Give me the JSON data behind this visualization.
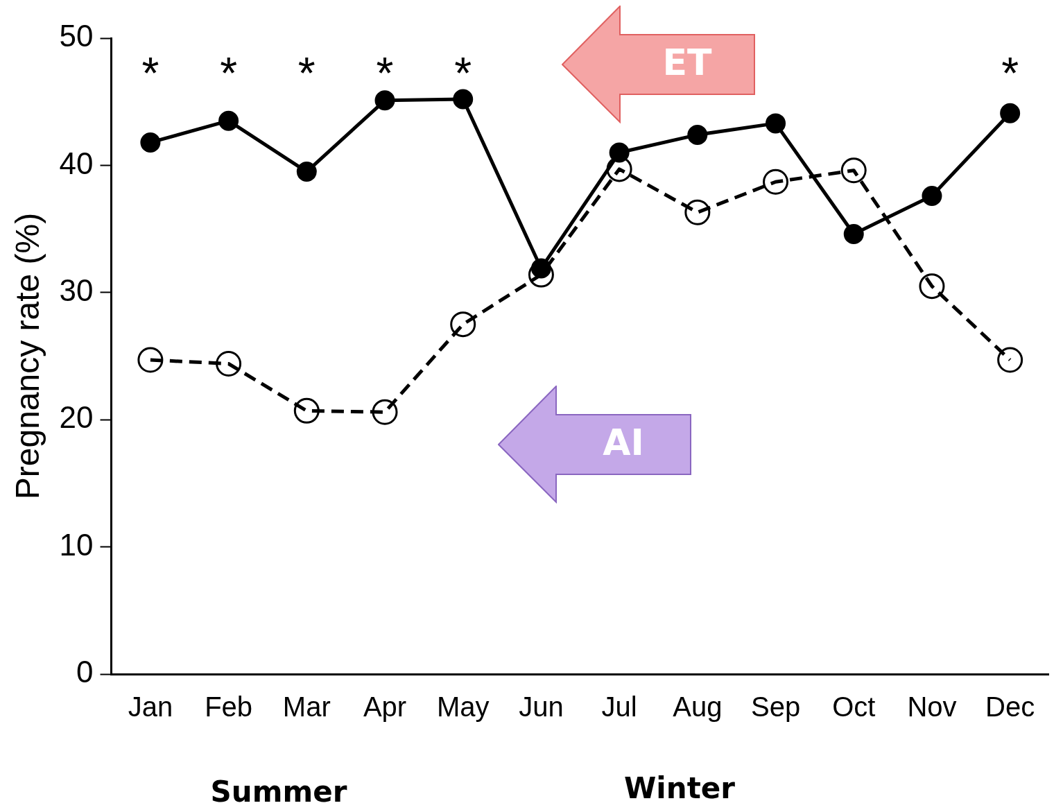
{
  "chart_data": {
    "type": "line",
    "ylabel": "Pregnancy rate (%)",
    "categories": [
      "Jan",
      "Feb",
      "Mar",
      "Apr",
      "May",
      "Jun",
      "Jul",
      "Aug",
      "Sep",
      "Oct",
      "Nov",
      "Dec"
    ],
    "series": [
      {
        "color": "#000000",
        "line_style": "solid",
        "values": [
          41.8,
          43.5,
          39.5,
          45.1,
          45.2,
          31.9,
          41.0,
          42.4,
          43.3,
          34.6,
          37.6,
          44.1
        ]
      },
      {
        "color": "#000000",
        "line_style": "dashed",
        "values": [
          24.7,
          24.4,
          20.7,
          20.6,
          27.5,
          31.4,
          39.7,
          36.3,
          38.7,
          39.6,
          30.5,
          24.7
        ]
      }
    ],
    "ylim": [
      0,
      50
    ],
    "yticks": [
      0,
      10,
      20,
      30,
      40,
      50
    ],
    "grid": false,
    "legend": false,
    "marker": "circle",
    "annotations": [
      "*",
      "*",
      "*",
      "*",
      "*",
      "*",
      "Summer",
      "Winter",
      "ET",
      "AI"
    ]
  }
}
